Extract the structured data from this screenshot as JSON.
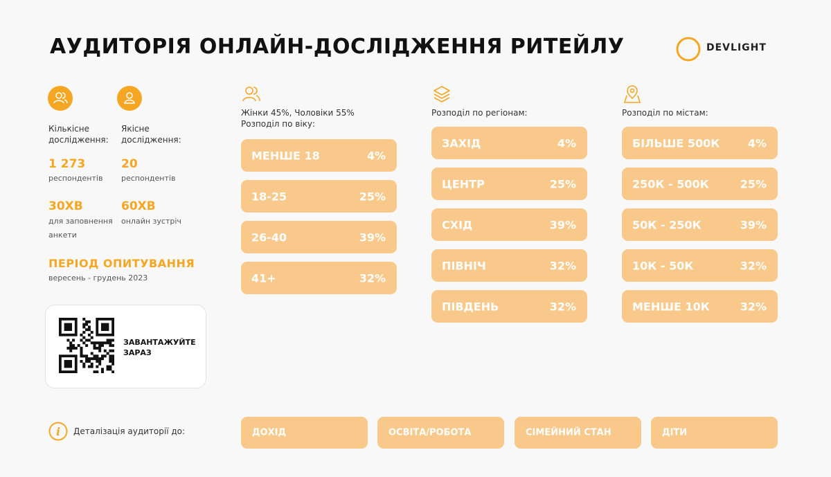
{
  "header": {
    "title": "АУДИТОРІЯ ОНЛАЙН-ДОСЛІДЖЕННЯ РИТЕЙЛУ",
    "logo": "DEVLIGHT"
  },
  "left": {
    "quant": {
      "label": "Кількісне дослідження:",
      "count": "1 273",
      "count_label": "респондентів",
      "time": "30ХВ",
      "time_label": "для заповнення анкети"
    },
    "qual": {
      "label": "Якісне дослідження:",
      "count": "20",
      "count_label": "респондентів",
      "time": "60ХВ",
      "time_label": "онлайн зустріч"
    },
    "period": {
      "title": "ПЕРІОД ОПИТУВАННЯ",
      "text": "вересень - грудень 2023"
    },
    "qr": {
      "text": "ЗАВАНТАЖУЙТЕ ЗАРАЗ"
    }
  },
  "columns": [
    {
      "captions": [
        "Жінки 45%, Чоловіки 55%",
        "Розподіл по віку:"
      ],
      "rows": [
        [
          "МЕНШЕ 18",
          "4%"
        ],
        [
          "18-25",
          "25%"
        ],
        [
          "26-40",
          "39%"
        ],
        [
          "41+",
          "32%"
        ]
      ]
    },
    {
      "captions": [
        "Розподіл по регіонам:"
      ],
      "rows": [
        [
          "ЗАХІД",
          "4%"
        ],
        [
          "ЦЕНТР",
          "25%"
        ],
        [
          "СХІД",
          "39%"
        ],
        [
          "ПІВНІЧ",
          "32%"
        ],
        [
          "ПІВДЕНЬ",
          "32%"
        ]
      ]
    },
    {
      "captions": [
        "Розподіл по містам:"
      ],
      "rows": [
        [
          "БІЛЬШЕ 500К",
          "4%"
        ],
        [
          "250К - 500К",
          "25%"
        ],
        [
          "50К - 250К",
          "39%"
        ],
        [
          "10К - 50К",
          "32%"
        ],
        [
          "МЕНШЕ 10К",
          "32%"
        ]
      ]
    }
  ],
  "footer": {
    "label": "Деталізація аудиторії до:",
    "buttons": [
      "ДОХІД",
      "ОСВІТА/РОБОТА",
      "СІМЕЙНИЙ СТАН",
      "ДІТИ"
    ]
  }
}
